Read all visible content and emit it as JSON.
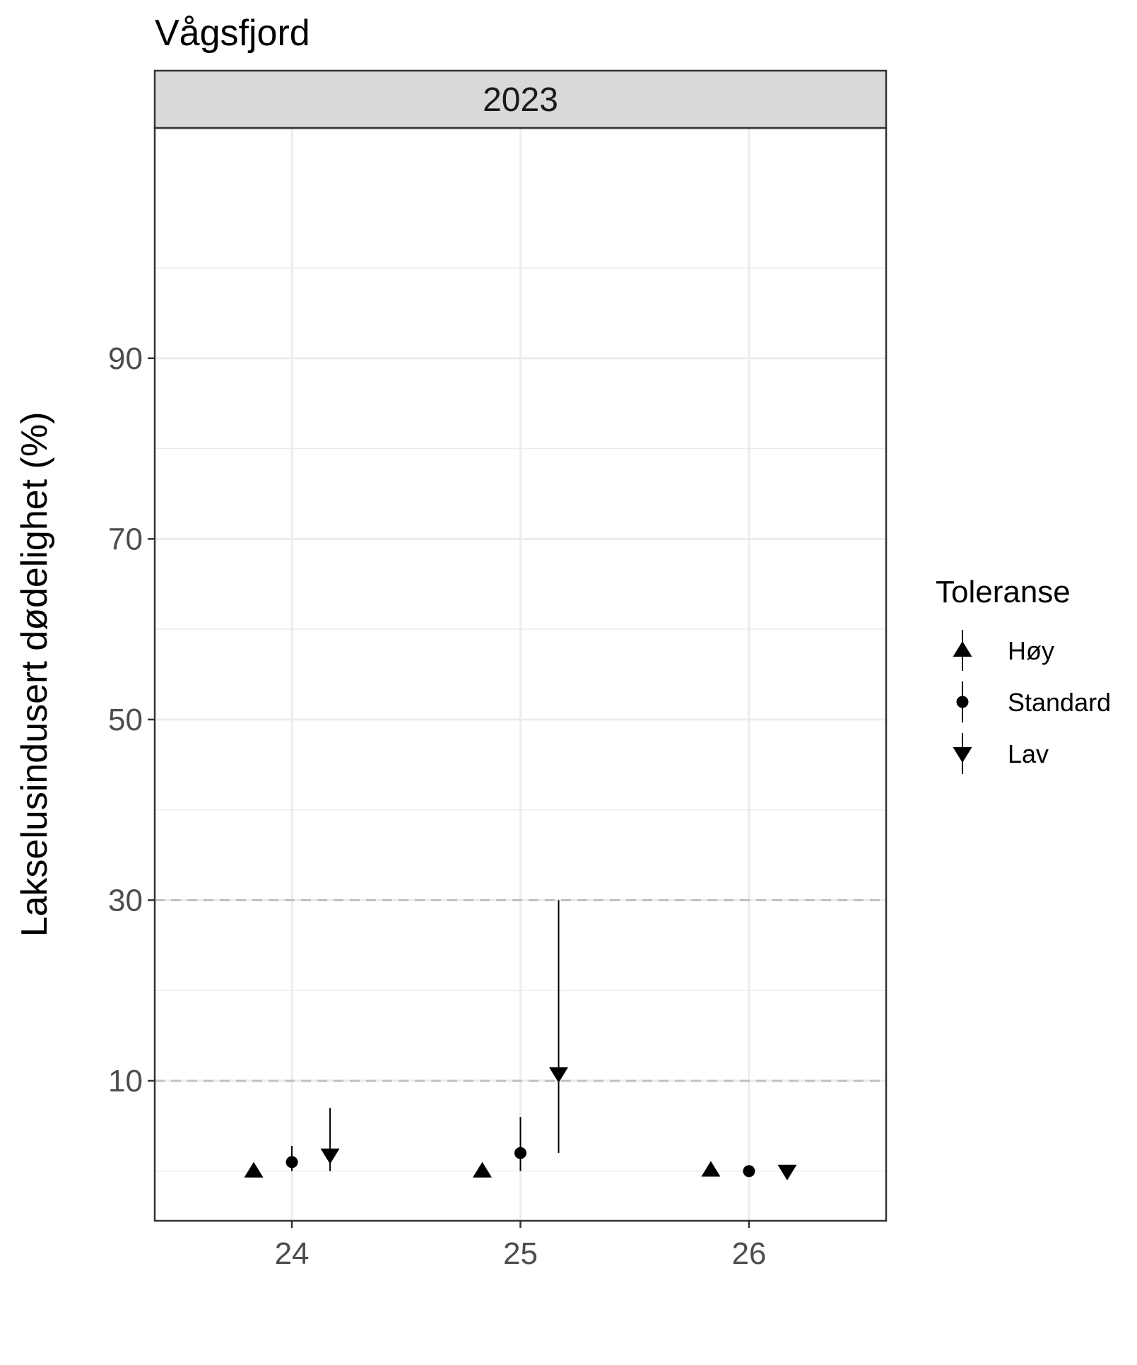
{
  "chart_data": {
    "type": "scatter",
    "title": "Vågsfjord",
    "facet": "2023",
    "xlabel": "",
    "ylabel": "Lakselusindusert dødelighet (%)",
    "x_ticks": [
      "24",
      "25",
      "26"
    ],
    "y_ticks": [
      "10",
      "30",
      "50",
      "70",
      "90"
    ],
    "xlim": [
      23.4,
      26.6
    ],
    "ylim": [
      -5.5,
      115.5
    ],
    "reference_lines": [
      10,
      30
    ],
    "grid": true,
    "legend": {
      "title": "Toleranse",
      "position": "right",
      "entries": [
        "Høy",
        "Standard",
        "Lav"
      ]
    },
    "x_offsets": {
      "Høy": -0.167,
      "Standard": 0.0,
      "Lav": 0.167
    },
    "series": [
      {
        "name": "Høy",
        "marker": "triangle-up",
        "points": [
          {
            "x": 24,
            "y": 0.0,
            "low": 0.0,
            "high": 0.0
          },
          {
            "x": 25,
            "y": 0.0,
            "low": 0.0,
            "high": 0.0
          },
          {
            "x": 26,
            "y": 0.1,
            "low": 0.0,
            "high": 0.2
          }
        ]
      },
      {
        "name": "Standard",
        "marker": "circle",
        "points": [
          {
            "x": 24,
            "y": 1.0,
            "low": 0.0,
            "high": 2.8
          },
          {
            "x": 25,
            "y": 2.0,
            "low": 0.0,
            "high": 6.0
          },
          {
            "x": 26,
            "y": 0.0,
            "low": 0.0,
            "high": 0.0
          }
        ]
      },
      {
        "name": "Lav",
        "marker": "triangle-down",
        "points": [
          {
            "x": 24,
            "y": 1.8,
            "low": 0.0,
            "high": 7.0
          },
          {
            "x": 25,
            "y": 10.8,
            "low": 2.0,
            "high": 30.0
          },
          {
            "x": 26,
            "y": 0.0,
            "low": 0.0,
            "high": 0.0
          }
        ]
      }
    ],
    "colors": {
      "marker": "#000000",
      "grid": "#ebebeb",
      "reference": "#bfbfbf",
      "strip": "#d9d9d9",
      "border": "#333333"
    }
  }
}
